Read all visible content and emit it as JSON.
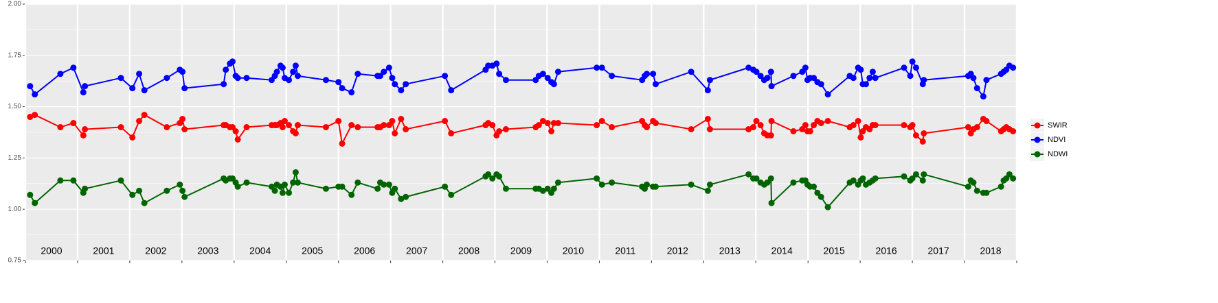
{
  "chart_data": {
    "type": "line",
    "x": [
      2000.09,
      2000.18,
      2000.67,
      2000.92,
      2001.11,
      2001.14,
      2001.83,
      2002.05,
      2002.18,
      2002.28,
      2002.71,
      2002.96,
      2003.01,
      2003.05,
      2003.8,
      2003.84,
      2003.92,
      2003.97,
      2004.03,
      2004.07,
      2004.24,
      2004.72,
      2004.78,
      2004.82,
      2004.89,
      2004.93,
      2004.97,
      2005.05,
      2005.13,
      2005.18,
      2005.22,
      2005.76,
      2006.0,
      2006.07,
      2006.25,
      2006.37,
      2006.75,
      2006.8,
      2006.87,
      2006.97,
      2007.03,
      2007.08,
      2007.2,
      2007.29,
      2008.04,
      2008.16,
      2008.82,
      2008.87,
      2008.95,
      2009.03,
      2009.08,
      2009.21,
      2009.78,
      2009.84,
      2009.92,
      2010.01,
      2010.08,
      2010.13,
      2010.21,
      2010.95,
      2011.05,
      2011.24,
      2011.82,
      2011.87,
      2011.91,
      2012.03,
      2012.08,
      2012.76,
      2013.08,
      2013.12,
      2013.86,
      2013.95,
      2014.01,
      2014.09,
      2014.16,
      2014.22,
      2014.29,
      2014.3,
      2014.72,
      2014.89,
      2014.95,
      2014.99,
      2015.04,
      2015.11,
      2015.18,
      2015.25,
      2015.38,
      2015.8,
      2015.87,
      2015.96,
      2016.01,
      2016.05,
      2016.11,
      2016.18,
      2016.24,
      2016.29,
      2016.84,
      2016.96,
      2017.0,
      2017.07,
      2017.2,
      2017.22,
      2018.07,
      2018.12,
      2018.17,
      2018.24,
      2018.36,
      2018.42,
      2018.7,
      2018.75,
      2018.8,
      2018.86,
      2018.93
    ],
    "series": [
      {
        "name": "SWIR",
        "color": "#ff0000",
        "values": [
          1.45,
          1.46,
          1.4,
          1.42,
          1.36,
          1.39,
          1.4,
          1.35,
          1.43,
          1.46,
          1.4,
          1.42,
          1.44,
          1.39,
          1.41,
          1.41,
          1.4,
          1.4,
          1.38,
          1.34,
          1.4,
          1.41,
          1.41,
          1.41,
          1.42,
          1.4,
          1.43,
          1.41,
          1.38,
          1.37,
          1.41,
          1.4,
          1.43,
          1.32,
          1.41,
          1.4,
          1.4,
          1.4,
          1.41,
          1.41,
          1.43,
          1.37,
          1.44,
          1.39,
          1.43,
          1.37,
          1.41,
          1.42,
          1.41,
          1.36,
          1.38,
          1.39,
          1.4,
          1.41,
          1.43,
          1.42,
          1.38,
          1.42,
          1.42,
          1.41,
          1.43,
          1.4,
          1.43,
          1.41,
          1.4,
          1.43,
          1.42,
          1.39,
          1.44,
          1.39,
          1.39,
          1.4,
          1.43,
          1.41,
          1.37,
          1.36,
          1.36,
          1.43,
          1.38,
          1.39,
          1.41,
          1.38,
          1.38,
          1.41,
          1.43,
          1.42,
          1.43,
          1.4,
          1.41,
          1.43,
          1.35,
          1.38,
          1.4,
          1.39,
          1.41,
          1.41,
          1.41,
          1.4,
          1.41,
          1.36,
          1.33,
          1.37,
          1.4,
          1.37,
          1.39,
          1.4,
          1.44,
          1.43,
          1.38,
          1.39,
          1.4,
          1.39,
          1.38
        ]
      },
      {
        "name": "NDVI",
        "color": "#0000ff",
        "values": [
          1.6,
          1.56,
          1.66,
          1.69,
          1.57,
          1.6,
          1.64,
          1.59,
          1.66,
          1.58,
          1.64,
          1.68,
          1.67,
          1.59,
          1.61,
          1.68,
          1.71,
          1.72,
          1.65,
          1.64,
          1.64,
          1.63,
          1.65,
          1.67,
          1.7,
          1.69,
          1.64,
          1.63,
          1.67,
          1.7,
          1.65,
          1.63,
          1.62,
          1.59,
          1.57,
          1.66,
          1.65,
          1.65,
          1.67,
          1.69,
          1.64,
          1.61,
          1.58,
          1.61,
          1.65,
          1.58,
          1.68,
          1.7,
          1.7,
          1.71,
          1.66,
          1.63,
          1.63,
          1.65,
          1.66,
          1.64,
          1.62,
          1.61,
          1.67,
          1.69,
          1.69,
          1.65,
          1.63,
          1.65,
          1.66,
          1.66,
          1.61,
          1.67,
          1.58,
          1.63,
          1.69,
          1.68,
          1.67,
          1.65,
          1.63,
          1.64,
          1.67,
          1.6,
          1.65,
          1.67,
          1.69,
          1.63,
          1.64,
          1.64,
          1.62,
          1.61,
          1.56,
          1.65,
          1.64,
          1.69,
          1.68,
          1.61,
          1.61,
          1.64,
          1.67,
          1.64,
          1.69,
          1.65,
          1.72,
          1.69,
          1.61,
          1.63,
          1.65,
          1.66,
          1.64,
          1.59,
          1.55,
          1.63,
          1.66,
          1.67,
          1.68,
          1.7,
          1.69
        ]
      },
      {
        "name": "NDWI",
        "color": "#006400",
        "values": [
          1.07,
          1.03,
          1.14,
          1.14,
          1.08,
          1.1,
          1.14,
          1.07,
          1.09,
          1.03,
          1.09,
          1.12,
          1.09,
          1.06,
          1.15,
          1.14,
          1.15,
          1.15,
          1.13,
          1.11,
          1.13,
          1.11,
          1.09,
          1.12,
          1.11,
          1.08,
          1.12,
          1.08,
          1.13,
          1.18,
          1.13,
          1.1,
          1.11,
          1.11,
          1.07,
          1.13,
          1.1,
          1.13,
          1.12,
          1.12,
          1.08,
          1.1,
          1.05,
          1.06,
          1.11,
          1.07,
          1.16,
          1.17,
          1.15,
          1.17,
          1.16,
          1.1,
          1.1,
          1.1,
          1.09,
          1.1,
          1.08,
          1.1,
          1.13,
          1.15,
          1.12,
          1.13,
          1.11,
          1.1,
          1.12,
          1.11,
          1.11,
          1.12,
          1.09,
          1.12,
          1.17,
          1.15,
          1.15,
          1.13,
          1.12,
          1.13,
          1.15,
          1.03,
          1.13,
          1.14,
          1.14,
          1.12,
          1.11,
          1.11,
          1.08,
          1.06,
          1.01,
          1.13,
          1.14,
          1.12,
          1.14,
          1.15,
          1.12,
          1.13,
          1.14,
          1.15,
          1.16,
          1.14,
          1.15,
          1.17,
          1.14,
          1.17,
          1.11,
          1.14,
          1.13,
          1.09,
          1.08,
          1.08,
          1.11,
          1.14,
          1.15,
          1.17,
          1.15
        ]
      }
    ],
    "xlim": [
      2000,
      2019
    ],
    "xticks": [
      2000,
      2001,
      2002,
      2003,
      2004,
      2005,
      2006,
      2007,
      2008,
      2009,
      2010,
      2011,
      2012,
      2013,
      2014,
      2015,
      2016,
      2017,
      2018,
      2019
    ],
    "year_labels": [
      2000,
      2001,
      2002,
      2003,
      2004,
      2005,
      2006,
      2007,
      2008,
      2009,
      2010,
      2011,
      2012,
      2013,
      2014,
      2015,
      2016,
      2017,
      2018
    ],
    "ylim": [
      0.75,
      2.0
    ],
    "yticks": [
      {
        "value": 0.75,
        "label": "0.75"
      },
      {
        "value": 1.0,
        "label": "1.00"
      },
      {
        "value": 1.25,
        "label": "1.25"
      },
      {
        "value": 1.5,
        "label": "1.50"
      },
      {
        "value": 1.75,
        "label": "1.75"
      },
      {
        "value": 2.0,
        "label": "2.00"
      }
    ],
    "grid": true,
    "legend": "right"
  }
}
